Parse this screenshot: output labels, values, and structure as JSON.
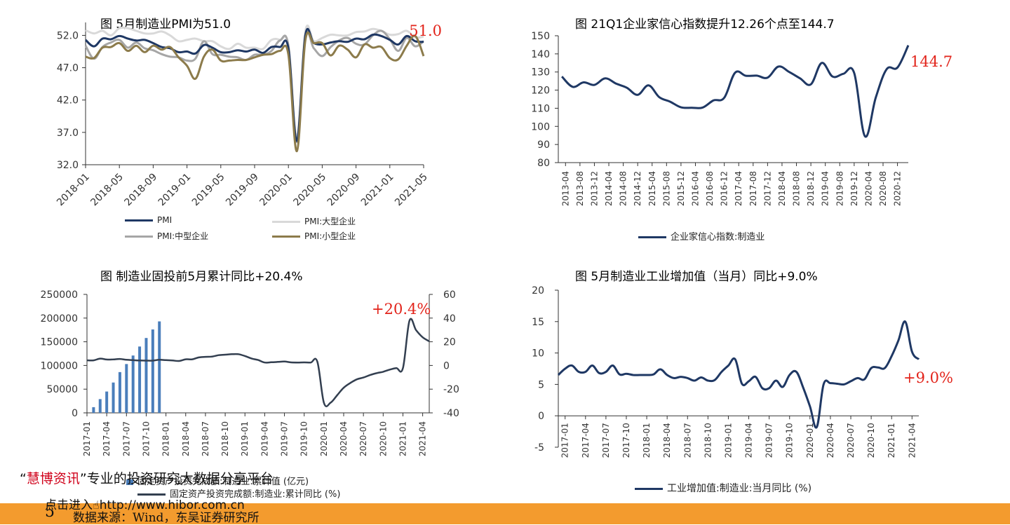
{
  "page": {
    "watermark": {
      "open_quote": "“",
      "brand": "慧博资讯",
      "close_quote": "”",
      "slogan": "专业的投资研究大数据分享平台",
      "link_prefix": "点击进入",
      "url": "http://www.hibor.com.cn"
    },
    "footer": {
      "page_number": "5",
      "source": "数据来源：Wind，东吴证券研究所"
    }
  },
  "chart_data": [
    {
      "type": "line",
      "title": "图  5月制造业PMI为51.0",
      "callout": "51.0",
      "callout_color": "#e2231a",
      "yticks": [
        "52.0",
        "47.0",
        "42.0",
        "37.0",
        "32.0"
      ],
      "ylim": [
        32,
        54
      ],
      "xticks": [
        "2018-01",
        "2018-05",
        "2018-09",
        "2019-01",
        "2019-05",
        "2019-09",
        "2020-01",
        "2020-05",
        "2020-09",
        "2021-01",
        "2021-05"
      ],
      "x": [
        "2018-01",
        "2018-02",
        "2018-03",
        "2018-04",
        "2018-05",
        "2018-06",
        "2018-07",
        "2018-08",
        "2018-09",
        "2018-10",
        "2018-11",
        "2018-12",
        "2019-01",
        "2019-02",
        "2019-03",
        "2019-04",
        "2019-05",
        "2019-06",
        "2019-07",
        "2019-08",
        "2019-09",
        "2019-10",
        "2019-11",
        "2019-12",
        "2020-01",
        "2020-02",
        "2020-03",
        "2020-04",
        "2020-05",
        "2020-06",
        "2020-07",
        "2020-08",
        "2020-09",
        "2020-10",
        "2020-11",
        "2020-12",
        "2021-01",
        "2021-02",
        "2021-03",
        "2021-04",
        "2021-05"
      ],
      "series": [
        {
          "name": "PMI",
          "color": "#1F3864",
          "width": 3,
          "values": [
            51.3,
            50.3,
            51.5,
            51.4,
            51.9,
            51.5,
            51.2,
            51.3,
            50.8,
            50.2,
            50.0,
            49.4,
            49.5,
            49.2,
            50.5,
            50.1,
            49.4,
            49.4,
            49.7,
            49.5,
            49.8,
            49.3,
            50.2,
            50.2,
            50.0,
            35.7,
            52.0,
            50.8,
            50.6,
            50.9,
            51.1,
            51.0,
            51.5,
            51.4,
            52.1,
            51.9,
            51.3,
            50.6,
            51.9,
            51.1,
            51.0
          ]
        },
        {
          "name": "PMI:大型企业",
          "color": "#D9D9D9",
          "width": 3,
          "values": [
            52.8,
            52.3,
            52.7,
            52.0,
            53.1,
            53.1,
            52.7,
            52.3,
            52.3,
            52.6,
            52.0,
            51.1,
            51.3,
            51.5,
            51.1,
            51.1,
            50.3,
            49.9,
            50.7,
            50.1,
            50.1,
            49.9,
            51.3,
            51.3,
            50.4,
            36.3,
            52.6,
            51.1,
            51.6,
            52.1,
            52.0,
            52.0,
            52.5,
            52.6,
            53.0,
            52.7,
            52.1,
            52.2,
            52.7,
            51.7,
            51.8
          ]
        },
        {
          "name": "PMI:中型企业",
          "color": "#A6A6A6",
          "width": 3,
          "values": [
            50.4,
            48.4,
            50.2,
            50.9,
            51.3,
            50.1,
            50.9,
            50.0,
            49.7,
            49.1,
            48.7,
            48.6,
            48.1,
            48.4,
            51.1,
            49.1,
            49.0,
            48.7,
            48.6,
            48.2,
            49.0,
            49.0,
            49.6,
            51.2,
            50.4,
            35.5,
            51.6,
            50.0,
            48.8,
            50.2,
            51.2,
            51.6,
            50.7,
            50.6,
            52.0,
            52.7,
            51.4,
            49.6,
            51.6,
            50.3,
            51.1
          ]
        },
        {
          "name": "PMI:小型企业",
          "color": "#8C7B4B",
          "width": 3,
          "values": [
            48.7,
            48.5,
            50.1,
            50.2,
            50.8,
            49.6,
            50.4,
            49.4,
            50.4,
            49.8,
            50.2,
            48.6,
            47.3,
            45.3,
            48.7,
            49.8,
            48.1,
            48.1,
            48.2,
            48.2,
            48.6,
            49.0,
            49.1,
            49.6,
            49.0,
            34.1,
            51.2,
            50.8,
            50.8,
            48.9,
            50.4,
            49.8,
            48.6,
            50.6,
            50.1,
            50.2,
            48.5,
            48.3,
            50.4,
            51.9,
            48.8
          ]
        }
      ]
    },
    {
      "type": "line",
      "title": "图   21Q1企业家信心指数提升12.26个点至144.7",
      "callout": "144.7",
      "callout_color": "#e2231a",
      "yticks": [
        "150",
        "140",
        "130",
        "120",
        "110",
        "100",
        "90",
        "80"
      ],
      "ylim": [
        80,
        150
      ],
      "xticks": [
        "2013-04",
        "2013-08",
        "2013-12",
        "2014-04",
        "2014-08",
        "2014-12",
        "2015-04",
        "2015-08",
        "2015-12",
        "2016-04",
        "2016-08",
        "2016-12",
        "2017-04",
        "2017-08",
        "2017-12",
        "2018-04",
        "2018-08",
        "2018-12",
        "2019-04",
        "2019-08",
        "2019-12",
        "2020-04",
        "2020-08",
        "2020-12"
      ],
      "x": [
        "2013-Q1",
        "2013-Q2",
        "2013-Q3",
        "2013-Q4",
        "2014-Q1",
        "2014-Q2",
        "2014-Q3",
        "2014-Q4",
        "2015-Q1",
        "2015-Q2",
        "2015-Q3",
        "2015-Q4",
        "2016-Q1",
        "2016-Q2",
        "2016-Q3",
        "2016-Q4",
        "2017-Q1",
        "2017-Q2",
        "2017-Q3",
        "2017-Q4",
        "2018-Q1",
        "2018-Q2",
        "2018-Q3",
        "2018-Q4",
        "2019-Q1",
        "2019-Q2",
        "2019-Q3",
        "2019-Q4",
        "2020-Q1",
        "2020-Q2",
        "2020-Q3",
        "2020-Q4",
        "2021-Q1"
      ],
      "series": [
        {
          "name": "企业家信心指数:制造业",
          "color": "#1F3864",
          "width": 3,
          "values": [
            127.5,
            121.8,
            124.3,
            122.9,
            126.5,
            123.6,
            121.3,
            117.4,
            122.6,
            116.1,
            113.6,
            110.5,
            110.3,
            110.4,
            114.3,
            115.8,
            129.6,
            127.9,
            128.0,
            126.9,
            133.0,
            130.0,
            126.5,
            123.2,
            135.0,
            127.5,
            129.0,
            129.5,
            94.5,
            116.0,
            131.5,
            132.5,
            144.7
          ]
        }
      ]
    },
    {
      "type": "bar-line",
      "title": "图   制造业固投前5月累计同比+20.4%",
      "callout": "+20.4%",
      "callout_color": "#e2231a",
      "yticks_left": [
        "250000",
        "200000",
        "150000",
        "100000",
        "50000",
        "0"
      ],
      "ylim_left": [
        0,
        250000
      ],
      "yticks_right": [
        "60",
        "40",
        "20",
        "0",
        "-20",
        "-40"
      ],
      "ylim_right": [
        -40,
        60
      ],
      "xticks": [
        "2017-01",
        "2017-04",
        "2017-07",
        "2017-10",
        "2018-01",
        "2018-04",
        "2018-07",
        "2018-10",
        "2019-01",
        "2019-04",
        "2019-07",
        "2019-10",
        "2020-01",
        "2020-04",
        "2020-07",
        "2020-10",
        "2021-01",
        "2021-04"
      ],
      "bar_series": {
        "name": "固定资产投资完成额:制造业:累计值 (亿元)",
        "color": "#4A7EBB",
        "x": [
          "2017-02",
          "2017-03",
          "2017-04",
          "2017-05",
          "2017-06",
          "2017-07",
          "2017-08",
          "2017-09",
          "2017-10",
          "2017-11",
          "2017-12"
        ],
        "values": [
          12000,
          29000,
          45000,
          64000,
          86000,
          103000,
          121000,
          140000,
          158000,
          176000,
          193000
        ]
      },
      "line_series": {
        "name": "固定资产投资完成额:制造业:累计同比 (%)",
        "color": "#333F50",
        "x": [
          "2017-01",
          "2017-02",
          "2017-03",
          "2017-04",
          "2017-05",
          "2017-06",
          "2017-07",
          "2017-08",
          "2017-09",
          "2017-10",
          "2017-11",
          "2017-12",
          "2018-01",
          "2018-02",
          "2018-03",
          "2018-04",
          "2018-05",
          "2018-06",
          "2018-07",
          "2018-08",
          "2018-09",
          "2018-10",
          "2018-11",
          "2018-12",
          "2019-01",
          "2019-02",
          "2019-03",
          "2019-04",
          "2019-05",
          "2019-06",
          "2019-07",
          "2019-08",
          "2019-09",
          "2019-10",
          "2019-11",
          "2019-12",
          "2020-01",
          "2020-02",
          "2020-03",
          "2020-04",
          "2020-05",
          "2020-06",
          "2020-07",
          "2020-08",
          "2020-09",
          "2020-10",
          "2020-11",
          "2020-12",
          "2021-01",
          "2021-02",
          "2021-03",
          "2021-04",
          "2021-05"
        ],
        "values": [
          4.3,
          4.3,
          5.8,
          5.0,
          5.1,
          5.5,
          4.8,
          4.5,
          4.2,
          4.1,
          4.1,
          4.8,
          4.5,
          4.2,
          3.8,
          5.2,
          5.2,
          6.8,
          7.3,
          7.5,
          8.7,
          9.1,
          9.5,
          9.5,
          8.0,
          5.9,
          4.6,
          2.5,
          2.7,
          3.0,
          3.3,
          2.6,
          2.5,
          2.6,
          2.5,
          3.1,
          -31.5,
          -31.5,
          -25.2,
          -18.8,
          -14.8,
          -11.7,
          -10.2,
          -8.1,
          -6.5,
          -5.3,
          -3.5,
          -2.2,
          -2.2,
          37.8,
          29.8,
          23.8,
          20.4
        ]
      }
    },
    {
      "type": "line",
      "title": "图  5月制造业工业增加值（当月）同比+9.0%",
      "callout": "+9.0%",
      "callout_color": "#e2231a",
      "yticks": [
        "20",
        "15",
        "10",
        "5",
        "0",
        "-5"
      ],
      "ylim": [
        -5,
        20
      ],
      "xticks": [
        "2017-01",
        "2017-04",
        "2017-07",
        "2017-10",
        "2018-01",
        "2018-04",
        "2018-07",
        "2018-10",
        "2019-01",
        "2019-04",
        "2019-07",
        "2019-10",
        "2020-01",
        "2020-04",
        "2020-07",
        "2020-10",
        "2021-01",
        "2021-04"
      ],
      "x": [
        "2016-12",
        "2017-01",
        "2017-02",
        "2017-03",
        "2017-04",
        "2017-05",
        "2017-06",
        "2017-07",
        "2017-08",
        "2017-09",
        "2017-10",
        "2017-11",
        "2017-12",
        "2018-01",
        "2018-02",
        "2018-03",
        "2018-04",
        "2018-05",
        "2018-06",
        "2018-07",
        "2018-08",
        "2018-09",
        "2018-10",
        "2018-11",
        "2018-12",
        "2019-01",
        "2019-02",
        "2019-03",
        "2019-04",
        "2019-05",
        "2019-06",
        "2019-07",
        "2019-08",
        "2019-09",
        "2019-10",
        "2019-11",
        "2019-12",
        "2020-01",
        "2020-02",
        "2020-03",
        "2020-04",
        "2020-05",
        "2020-06",
        "2020-07",
        "2020-08",
        "2020-09",
        "2020-10",
        "2020-11",
        "2020-12",
        "2021-01",
        "2021-02",
        "2021-03",
        "2021-04",
        "2021-05"
      ],
      "series": [
        {
          "name": "工业增加值:制造业:当月同比 (%)",
          "color": "#1F3864",
          "width": 3,
          "values": [
            6.5,
            7.5,
            8.0,
            7.0,
            7.0,
            8.0,
            6.8,
            7.0,
            8.0,
            6.6,
            6.7,
            6.5,
            6.5,
            6.5,
            6.6,
            7.4,
            6.5,
            6.0,
            6.2,
            6.0,
            5.6,
            6.1,
            5.6,
            5.7,
            7.0,
            8.0,
            9.0,
            5.1,
            5.5,
            6.2,
            4.4,
            4.4,
            5.6,
            4.6,
            6.5,
            7.0,
            4.5,
            1.5,
            -1.8,
            5.0,
            5.2,
            5.1,
            5.0,
            5.5,
            6.0,
            5.8,
            7.6,
            7.7,
            7.6,
            9.5,
            12.0,
            15.0,
            10.2,
            9.0
          ]
        }
      ]
    }
  ]
}
